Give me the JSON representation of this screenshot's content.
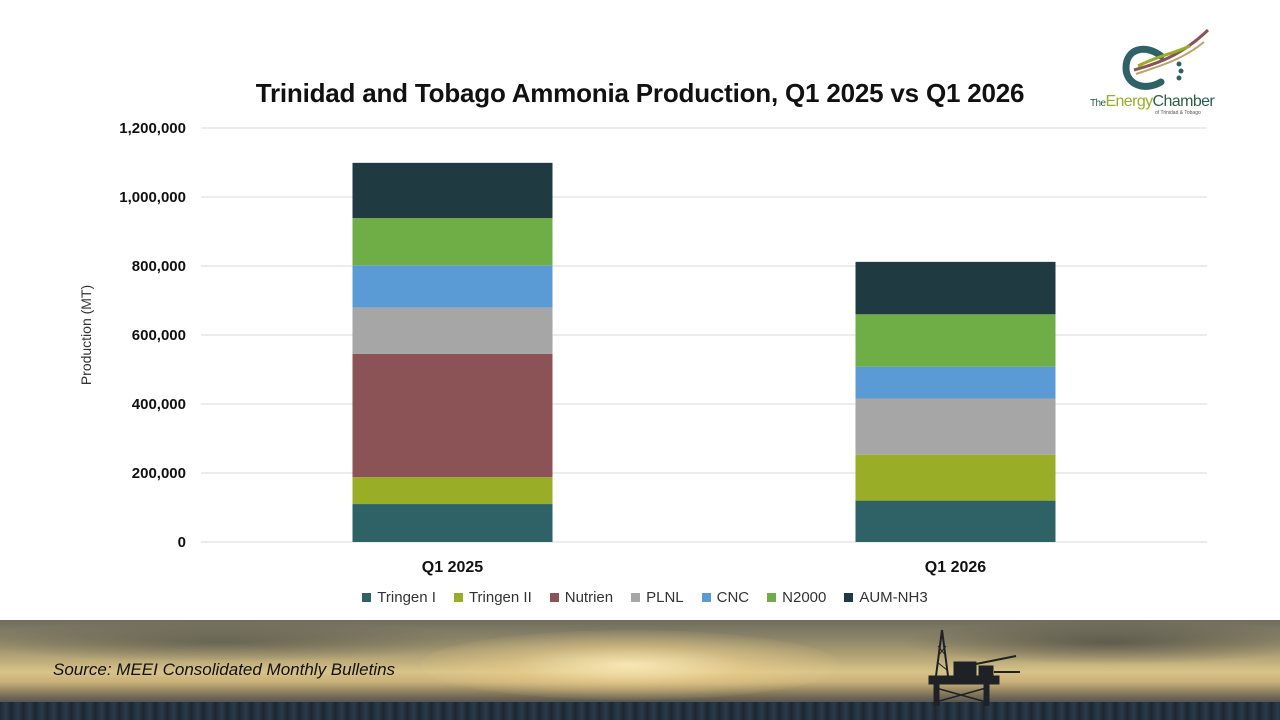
{
  "title": "Trinidad and Tobago Ammonia Production, Q1 2025 vs Q1 2026",
  "logo": {
    "text_the": "The",
    "text_energy": "Energy",
    "text_chamber": "Chamber",
    "subtext": "of Trinidad & Tobago"
  },
  "source": "Source: MEEI Consolidated Monthly Bulletins",
  "chart_data": {
    "type": "bar",
    "stacked": true,
    "categories": [
      "Q1 2025",
      "Q1 2026"
    ],
    "ylabel": "Production (MT)",
    "ylim": [
      0,
      1200000
    ],
    "yticks": [
      0,
      200000,
      400000,
      600000,
      800000,
      1000000,
      1200000
    ],
    "ytick_labels": [
      "0",
      "200,000",
      "400,000",
      "600,000",
      "800,000",
      "1,000,000",
      "1,200,000"
    ],
    "grid": true,
    "legend_position": "bottom",
    "series": [
      {
        "name": "Tringen I",
        "color": "#2e6266",
        "values": [
          110000,
          120000
        ]
      },
      {
        "name": "Tringen II",
        "color": "#9aad26",
        "values": [
          78000,
          133000
        ]
      },
      {
        "name": "Nutrien",
        "color": "#8b5356",
        "values": [
          357000,
          0
        ]
      },
      {
        "name": "PLNL",
        "color": "#a6a6a6",
        "values": [
          135000,
          163000
        ]
      },
      {
        "name": "CNC",
        "color": "#5b9bd5",
        "values": [
          122000,
          92000
        ]
      },
      {
        "name": "N2000",
        "color": "#6fad46",
        "values": [
          137000,
          152000
        ]
      },
      {
        "name": "AUM-NH3",
        "color": "#1f3a40",
        "values": [
          160000,
          152000
        ]
      }
    ]
  }
}
